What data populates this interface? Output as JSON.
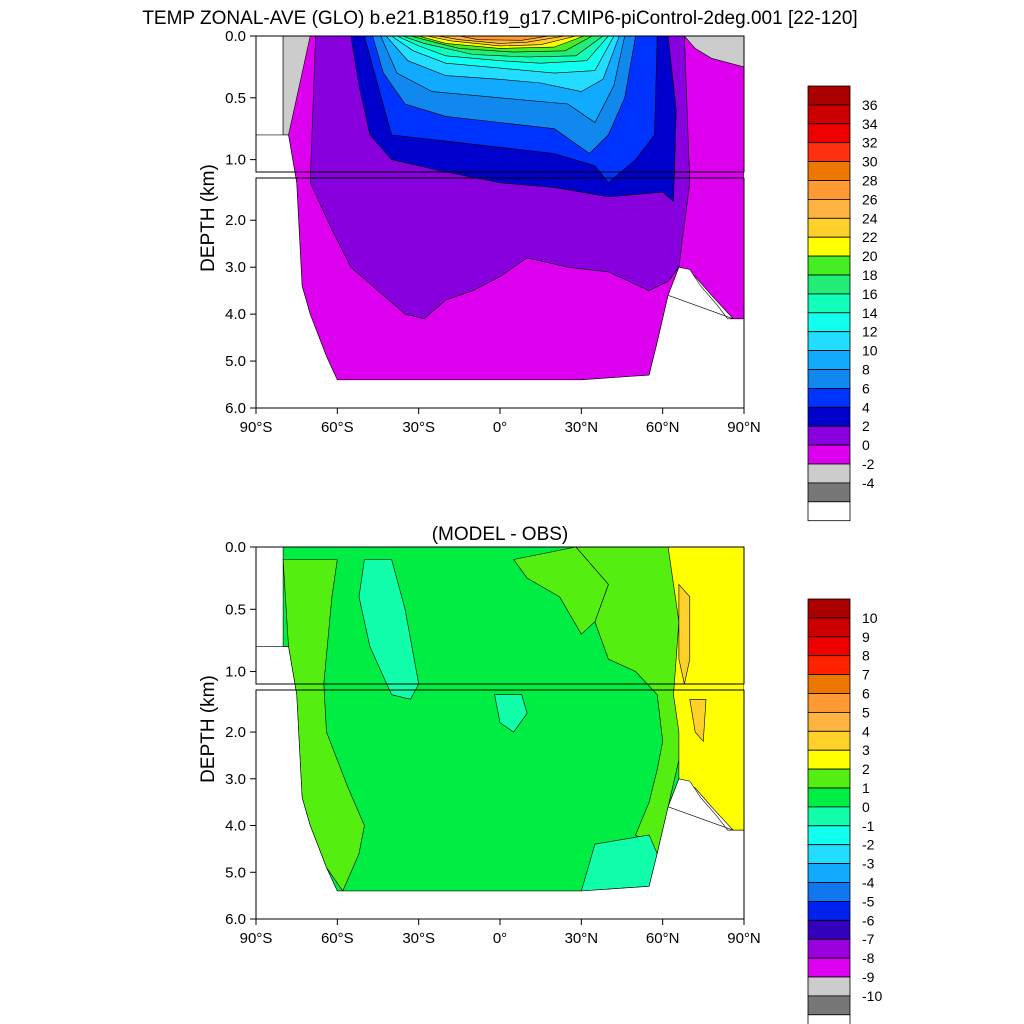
{
  "chart_data": [
    {
      "type": "heatmap",
      "title": "TEMP ZONAL-AVE (GLO) b.e21.B1850.f19_g17.CMIP6-piControl-2deg.001 [22-120]",
      "xlabel": "",
      "ylabel": "DEPTH (km)",
      "xlim": [
        -90,
        90
      ],
      "ylim": [
        6.0,
        0.0
      ],
      "x_ticks": [
        "90°S",
        "60°S",
        "30°S",
        "0°",
        "30°N",
        "60°N",
        "90°N"
      ],
      "y_ticks_upper": [
        "0.0",
        "0.5",
        "1.0"
      ],
      "y_ticks_lower": [
        "2.0",
        "3.0",
        "4.0",
        "5.0",
        "6.0"
      ],
      "colorbar": {
        "labels": [
          "36",
          "34",
          "32",
          "30",
          "28",
          "26",
          "24",
          "22",
          "20",
          "18",
          "16",
          "14",
          "12",
          "10",
          "8",
          "6",
          "4",
          "2",
          "0",
          "-2",
          "-4"
        ],
        "colors": [
          "#aa0000",
          "#cc0000",
          "#ee0000",
          "#ff3010",
          "#ee7700",
          "#ff9933",
          "#ffb340",
          "#ffd02a",
          "#ffff00",
          "#44ee22",
          "#22ee77",
          "#11ffbb",
          "#11ffee",
          "#22ddff",
          "#11aaff",
          "#1188ee",
          "#0033ff",
          "#0000cc",
          "#8800dd",
          "#dd00ee",
          "#cccccc",
          "#777777",
          "#ffffff"
        ]
      }
    },
    {
      "type": "heatmap",
      "title": "(MODEL - OBS)",
      "xlabel": "",
      "ylabel": "DEPTH (km)",
      "xlim": [
        -90,
        90
      ],
      "ylim": [
        6.0,
        0.0
      ],
      "x_ticks": [
        "90°S",
        "60°S",
        "30°S",
        "0°",
        "30°N",
        "60°N",
        "90°N"
      ],
      "y_ticks_upper": [
        "0.0",
        "0.5",
        "1.0"
      ],
      "y_ticks_lower": [
        "2.0",
        "3.0",
        "4.0",
        "5.0",
        "6.0"
      ],
      "colorbar": {
        "labels": [
          "10",
          "9",
          "8",
          "7",
          "6",
          "5",
          "4",
          "3",
          "2",
          "1",
          "0",
          "-1",
          "-2",
          "-3",
          "-4",
          "-5",
          "-6",
          "-7",
          "-8",
          "-9",
          "-10"
        ],
        "colors": [
          "#aa0000",
          "#cc0000",
          "#ee0000",
          "#ff2200",
          "#ee7700",
          "#ff9933",
          "#ffb340",
          "#ffd02a",
          "#ffff00",
          "#55ee11",
          "#00ee44",
          "#11ffaa",
          "#11ffee",
          "#22ddff",
          "#11aaff",
          "#1177ee",
          "#0022ee",
          "#3300bb",
          "#9900dd",
          "#dd00ee",
          "#cccccc",
          "#777777",
          "#ffffff"
        ]
      }
    }
  ]
}
